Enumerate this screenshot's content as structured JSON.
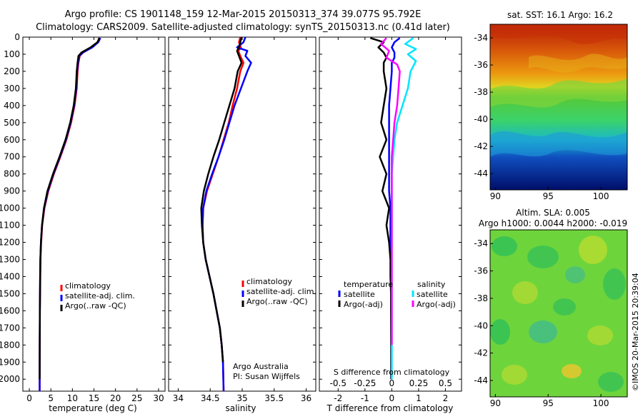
{
  "header": {
    "title_line1": "Argo profile: CS 1901148_159 12-Mar-2015 20150313_374 39.077S 95.792E",
    "title_line2": "Climatology: CARS2009. Satellite-adjusted climatology: synTS_20150313.nc (0.41d later)"
  },
  "colors": {
    "climatology": "#ff0000",
    "satellite": "#0000ff",
    "argo": "#000000",
    "sal_satellite": "#00e5ff",
    "sal_argo": "#ff00ff"
  },
  "chart_data": [
    {
      "type": "line",
      "name": "temperature-profile",
      "xlabel": "temperature (deg C)",
      "ylabel": "",
      "xlim": [
        -1.5,
        31.5
      ],
      "ylim": [
        2070,
        0
      ],
      "xticks": [
        "0",
        "5",
        "10",
        "15",
        "20",
        "25",
        "30"
      ],
      "xtick_values": [
        0,
        5,
        10,
        15,
        20,
        25,
        30
      ],
      "yticks": [
        "0",
        "100",
        "200",
        "300",
        "400",
        "500",
        "600",
        "700",
        "800",
        "900",
        "1000",
        "1100",
        "1200",
        "1300",
        "1400",
        "1500",
        "1600",
        "1700",
        "1800",
        "1900",
        "2000"
      ],
      "ytick_values": [
        0,
        100,
        200,
        300,
        400,
        500,
        600,
        700,
        800,
        900,
        1000,
        1100,
        1200,
        1300,
        1400,
        1500,
        1600,
        1700,
        1800,
        1900,
        2000
      ],
      "legend": [
        "climatology",
        "satellite-adj. clim.",
        "Argo(..raw -QC)"
      ],
      "series": [
        {
          "name": "climatology",
          "color": "#ff0000",
          "x": [
            16.2,
            15.9,
            14.5,
            12.5,
            11.7,
            11.4,
            11.2,
            11.0,
            10.5,
            9.7,
            8.6,
            7.2,
            5.7,
            4.4,
            3.5,
            3.0,
            2.75,
            2.6,
            2.55,
            2.5,
            2.45,
            2.42,
            2.4,
            2.4
          ],
          "y": [
            5,
            30,
            60,
            90,
            110,
            150,
            200,
            300,
            400,
            500,
            600,
            700,
            800,
            900,
            1000,
            1100,
            1200,
            1300,
            1400,
            1500,
            1600,
            1800,
            2000,
            2070
          ]
        },
        {
          "name": "satellite-adj. clim.",
          "color": "#0000ff",
          "x": [
            16.5,
            16.0,
            14.6,
            12.4,
            11.6,
            11.3,
            11.1,
            10.9,
            10.4,
            9.6,
            8.5,
            7.1,
            5.6,
            4.3,
            3.45,
            2.95,
            2.7,
            2.57,
            2.52,
            2.48,
            2.45,
            2.42,
            2.4,
            2.4
          ],
          "y": [
            5,
            30,
            60,
            90,
            110,
            150,
            200,
            300,
            400,
            500,
            600,
            700,
            800,
            900,
            1000,
            1100,
            1200,
            1300,
            1400,
            1500,
            1600,
            1800,
            2000,
            2070
          ]
        },
        {
          "name": "Argo(..raw -QC)",
          "color": "#000000",
          "x": [
            16.3,
            15.8,
            14.2,
            12.1,
            11.4,
            11.2,
            11.0,
            10.8,
            10.3,
            9.5,
            8.4,
            7.0,
            5.5,
            4.2,
            3.4,
            2.95,
            2.7,
            2.57,
            2.52,
            2.48,
            2.45,
            2.42,
            2.4
          ],
          "y": [
            5,
            30,
            60,
            90,
            110,
            150,
            200,
            300,
            400,
            500,
            600,
            700,
            800,
            900,
            1000,
            1100,
            1200,
            1300,
            1400,
            1500,
            1600,
            1800,
            2000
          ]
        }
      ]
    },
    {
      "type": "line",
      "name": "salinity-profile",
      "xlabel": "salinity",
      "xlim": [
        33.85,
        36.15
      ],
      "ylim": [
        2070,
        0
      ],
      "xticks": [
        "34",
        "34.5",
        "35",
        "35.5",
        "36"
      ],
      "xtick_values": [
        34,
        34.5,
        35,
        35.5,
        36
      ],
      "legend": [
        "climatology",
        "satellite-adj. clim.",
        "Argo(..raw -QC)"
      ],
      "annotation_line1": "Argo Australia",
      "annotation_line2": "PI: Susan Wijffels",
      "series": [
        {
          "name": "climatology",
          "color": "#ff0000",
          "x": [
            34.97,
            34.95,
            34.98,
            34.94,
            34.97,
            35.02,
            34.97,
            34.92,
            34.85,
            34.79,
            34.71,
            34.63,
            34.54,
            34.45,
            34.39,
            34.38,
            34.39,
            34.43,
            34.49,
            34.55,
            34.6,
            34.65,
            34.68,
            34.7,
            34.71
          ],
          "y": [
            0,
            30,
            60,
            80,
            110,
            150,
            200,
            300,
            400,
            500,
            600,
            700,
            800,
            900,
            1000,
            1100,
            1200,
            1300,
            1400,
            1500,
            1600,
            1700,
            1800,
            1900,
            2070
          ]
        },
        {
          "name": "satellite-adj. clim.",
          "color": "#0000ff",
          "x": [
            35.05,
            35.02,
            34.92,
            35.08,
            35.05,
            35.14,
            35.08,
            34.98,
            34.88,
            34.8,
            34.72,
            34.63,
            34.53,
            34.44,
            34.39,
            34.38,
            34.39,
            34.43,
            34.49,
            34.55,
            34.6,
            34.65,
            34.68,
            34.7,
            34.71
          ],
          "y": [
            0,
            30,
            60,
            80,
            110,
            150,
            200,
            300,
            400,
            500,
            600,
            700,
            800,
            900,
            1000,
            1100,
            1200,
            1300,
            1400,
            1500,
            1600,
            1700,
            1800,
            1900,
            2070
          ]
        },
        {
          "name": "Argo(..raw -QC)",
          "color": "#000000",
          "x": [
            34.99,
            34.97,
            34.95,
            34.92,
            34.95,
            34.99,
            34.93,
            34.88,
            34.8,
            34.72,
            34.64,
            34.55,
            34.47,
            34.4,
            34.36,
            34.37,
            34.39,
            34.43,
            34.49,
            34.55,
            34.6,
            34.65,
            34.68,
            34.7
          ],
          "y": [
            0,
            30,
            60,
            80,
            110,
            150,
            200,
            300,
            400,
            500,
            600,
            700,
            800,
            900,
            1000,
            1100,
            1200,
            1300,
            1400,
            1500,
            1600,
            1700,
            1800,
            1900
          ]
        }
      ]
    },
    {
      "type": "line",
      "name": "difference-profile",
      "xlabel": "T difference from climatology",
      "xlim": [
        -2.7,
        2.6
      ],
      "ylim": [
        2070,
        0
      ],
      "xticks": [
        "-2",
        "-1",
        "0",
        "1",
        "2"
      ],
      "xtick_values": [
        -2,
        -1,
        0,
        1,
        2
      ],
      "top_axis_label": "S difference from climatology",
      "top_ticks": [
        "-0.5",
        "-0.25",
        "0",
        "0.25",
        "0.5"
      ],
      "top_tick_values": [
        -2,
        -1,
        0,
        1,
        2
      ],
      "legend_temperature_title": "temperature",
      "legend_salinity_title": "salinity",
      "legend_items": [
        "satellite",
        "Argo(-adj)",
        "satellite",
        "Argo(-adj)"
      ],
      "series": [
        {
          "name": "T satellite",
          "color": "#0000ff",
          "x": [
            0.3,
            0.1,
            0.0,
            0.1,
            0.1,
            0.0,
            0.0,
            -0.05,
            -0.1,
            -0.1,
            -0.1,
            -0.1,
            -0.1,
            -0.1,
            -0.05,
            -0.05,
            -0.05,
            -0.03,
            -0.03,
            -0.02,
            -0.02,
            -0.02,
            -0.02
          ],
          "y": [
            5,
            30,
            60,
            90,
            120,
            150,
            200,
            300,
            400,
            500,
            600,
            700,
            800,
            900,
            1000,
            1100,
            1200,
            1300,
            1400,
            1500,
            1600,
            1800,
            2000
          ]
        },
        {
          "name": "T Argo(-adj)",
          "color": "#000000",
          "x": [
            -0.8,
            -0.3,
            -0.5,
            -0.3,
            -0.2,
            -0.3,
            -0.3,
            -0.2,
            -0.3,
            -0.4,
            -0.2,
            -0.45,
            -0.2,
            -0.35,
            -0.1,
            -0.2,
            -0.1,
            -0.05,
            -0.05,
            -0.03,
            -0.03,
            -0.02,
            -0.02
          ],
          "y": [
            5,
            30,
            60,
            90,
            120,
            150,
            200,
            300,
            400,
            500,
            600,
            700,
            800,
            900,
            1000,
            1100,
            1200,
            1300,
            1400,
            1500,
            1600,
            1800,
            2000
          ]
        },
        {
          "name": "S satellite",
          "color": "#00e5ff",
          "x": [
            0.8,
            0.5,
            0.9,
            0.6,
            0.9,
            0.7,
            0.6,
            0.4,
            0.2,
            0.1,
            0.05,
            0.0,
            0.0,
            0.0,
            0.0,
            0.0,
            0.0,
            0.0,
            0.0
          ],
          "y": [
            5,
            40,
            70,
            100,
            140,
            200,
            300,
            400,
            500,
            600,
            700,
            800,
            900,
            1000,
            1200,
            1400,
            1600,
            1800,
            2000
          ]
        },
        {
          "name": "S Argo(-adj)",
          "color": "#ff00ff",
          "x": [
            -0.2,
            -0.4,
            -0.1,
            -0.2,
            0.2,
            0.3,
            0.25,
            0.2,
            0.1,
            0.05,
            0.0,
            0.0,
            0.0,
            0.0,
            0.0,
            0.0,
            0.0,
            0.0
          ],
          "y": [
            5,
            40,
            80,
            120,
            160,
            200,
            300,
            400,
            500,
            600,
            700,
            800,
            900,
            1000,
            1200,
            1400,
            1600,
            1800
          ]
        }
      ]
    },
    {
      "type": "heatmap",
      "name": "sst-map",
      "title": "sat. SST: 16.1  Argo: 16.2",
      "xlim": [
        89.5,
        102.5
      ],
      "ylim": [
        -45.2,
        -33.0
      ],
      "xticks": [
        "90",
        "95",
        "100"
      ],
      "xtick_values": [
        90,
        95,
        100
      ],
      "yticks": [
        "-34",
        "-36",
        "-38",
        "-40",
        "-42",
        "-44"
      ],
      "ytick_values": [
        -34,
        -36,
        -38,
        -40,
        -42,
        -44
      ]
    },
    {
      "type": "heatmap",
      "name": "sla-map",
      "title_line1": "Altim. SLA: 0.005",
      "title_line2": "Argo h1000: 0.0044 h2000: -0.019",
      "xlim": [
        89.5,
        102.5
      ],
      "ylim": [
        -45.2,
        -33.0
      ],
      "xticks": [
        "90",
        "95",
        "100"
      ],
      "xtick_values": [
        90,
        95,
        100
      ],
      "yticks": [
        "-34",
        "-36",
        "-38",
        "-40",
        "-42",
        "-44"
      ],
      "ytick_values": [
        -34,
        -36,
        -38,
        -40,
        -42,
        -44
      ]
    }
  ],
  "stamp": "©IMOS 20-Mar-2015 20:39:04"
}
